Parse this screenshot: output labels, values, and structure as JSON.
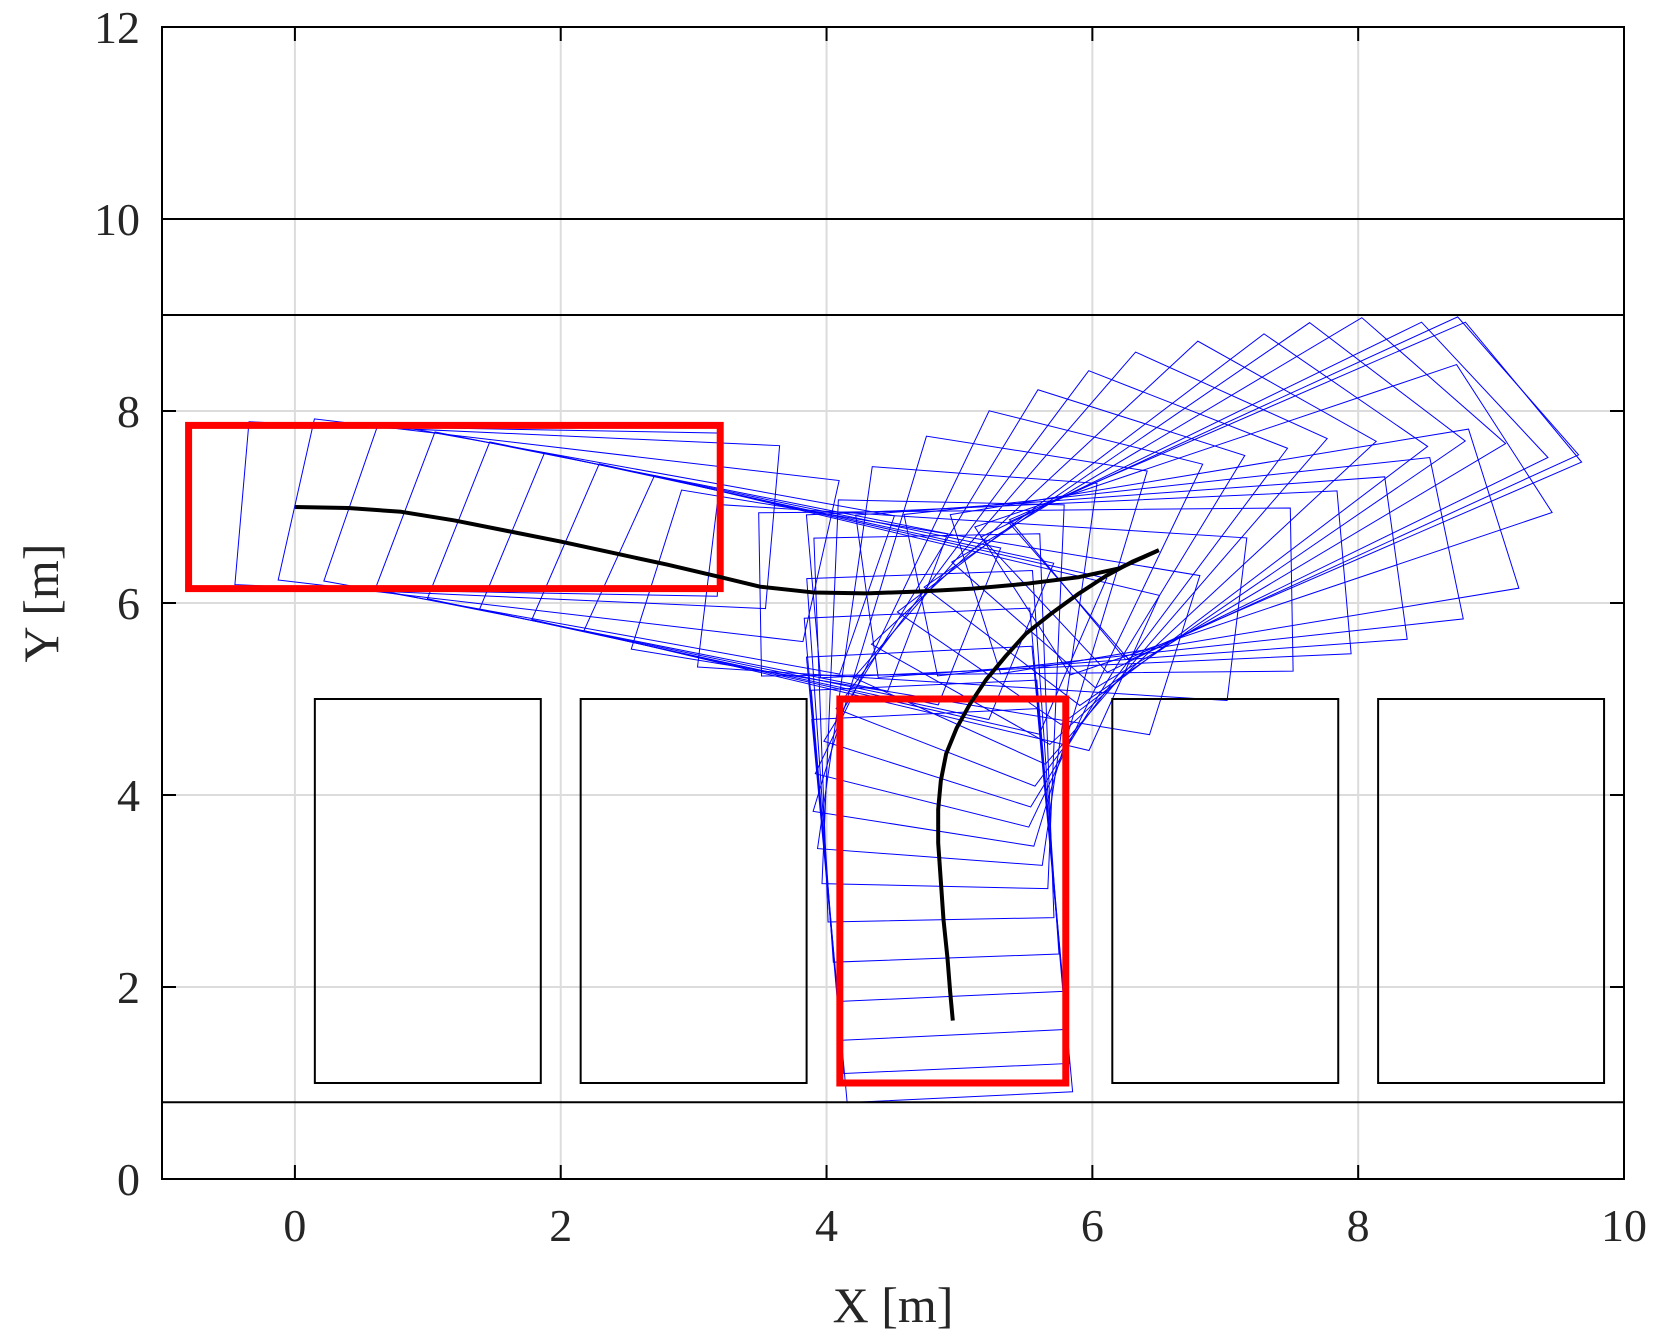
{
  "chart_data": {
    "type": "line",
    "xlabel": "X [m]",
    "ylabel": "Y [m]",
    "xlim": [
      -1,
      10
    ],
    "ylim": [
      0,
      12
    ],
    "xticks": [
      0,
      2,
      4,
      6,
      8,
      10
    ],
    "yticks": [
      0,
      2,
      4,
      6,
      8,
      10,
      12
    ],
    "grid": true,
    "footprint_color": "#0000ff",
    "series": [
      {
        "color": "#000000",
        "x": [
          0,
          0.4,
          0.8,
          1.2,
          1.6,
          2.0,
          2.4,
          2.8,
          3.2,
          3.5,
          3.9,
          4.3,
          4.7,
          5.1,
          5.5,
          5.9,
          6.2,
          6.5
        ],
        "y": [
          7.0,
          6.99,
          6.95,
          6.86,
          6.75,
          6.64,
          6.52,
          6.4,
          6.27,
          6.17,
          6.11,
          6.1,
          6.12,
          6.15,
          6.2,
          6.27,
          6.36,
          6.55
        ]
      },
      {
        "color": "#000000",
        "x": [
          6.5,
          6.3,
          6.1,
          5.9,
          5.7,
          5.5,
          5.35,
          5.2,
          5.08,
          4.98,
          4.9,
          4.86,
          4.84,
          4.84,
          4.86,
          4.88,
          4.91,
          4.93,
          4.95
        ],
        "y": [
          6.55,
          6.43,
          6.28,
          6.1,
          5.9,
          5.68,
          5.45,
          5.2,
          4.95,
          4.7,
          4.43,
          4.15,
          3.85,
          3.5,
          3.1,
          2.7,
          2.3,
          1.95,
          1.65
        ]
      }
    ],
    "lines": [
      {
        "y": 10,
        "color": "#000000"
      },
      {
        "y": 9,
        "color": "#000000"
      },
      {
        "y": 0.8,
        "color": "#000000"
      }
    ],
    "rectangles": [
      {
        "x": [
          0.15,
          1.85
        ],
        "y": [
          1,
          5
        ],
        "color": "#000000"
      },
      {
        "x": [
          2.15,
          3.85
        ],
        "y": [
          1,
          5
        ],
        "color": "#000000"
      },
      {
        "x": [
          6.15,
          7.85
        ],
        "y": [
          1,
          5
        ],
        "color": "#000000"
      },
      {
        "x": [
          8.15,
          9.85
        ],
        "y": [
          1,
          5
        ],
        "color": "#000000"
      }
    ],
    "poses": [
      {
        "x": [
          -0.8,
          3.2
        ],
        "y": [
          6.15,
          7.85
        ],
        "color": "#ff0000"
      },
      {
        "x": [
          4.1,
          5.8
        ],
        "y": [
          1.0,
          5.0
        ],
        "color": "#ff0000"
      }
    ]
  }
}
